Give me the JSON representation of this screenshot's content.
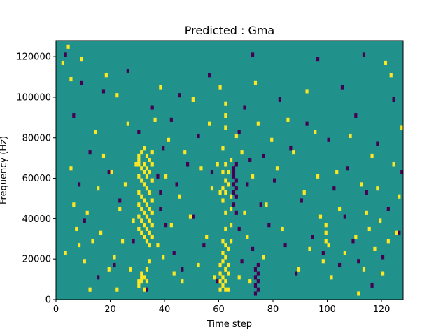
{
  "chart_data": {
    "type": "heatmap",
    "title": "Predicted : Gma",
    "xlabel": "Time step",
    "ylabel": "Frequency (Hz)",
    "xlim": [
      0,
      128
    ],
    "ylim": [
      0,
      128000
    ],
    "xticks": [
      0,
      20,
      40,
      60,
      80,
      100,
      120
    ],
    "yticks": [
      0,
      20000,
      40000,
      60000,
      80000,
      100000,
      120000
    ],
    "colors": {
      "background": "#21918c",
      "high": "#fde725",
      "low": "#440154"
    },
    "cell_width": 1,
    "cell_height": 2000,
    "high_cells": [
      [
        2,
        117000
      ],
      [
        3,
        23000
      ],
      [
        4,
        125000
      ],
      [
        5,
        109000
      ],
      [
        5,
        65000
      ],
      [
        6,
        47000
      ],
      [
        7,
        35000
      ],
      [
        8,
        27000
      ],
      [
        9,
        119000
      ],
      [
        10,
        19000
      ],
      [
        11,
        43000
      ],
      [
        12,
        5000
      ],
      [
        13,
        29000
      ],
      [
        14,
        83000
      ],
      [
        15,
        55000
      ],
      [
        16,
        33000
      ],
      [
        17,
        71000
      ],
      [
        18,
        111000
      ],
      [
        19,
        15000
      ],
      [
        20,
        63000
      ],
      [
        21,
        21000
      ],
      [
        22,
        101000
      ],
      [
        22,
        5000
      ],
      [
        23,
        45000
      ],
      [
        24,
        29000
      ],
      [
        25,
        57000
      ],
      [
        26,
        87000
      ],
      [
        27,
        15000
      ],
      [
        28,
        39000
      ],
      [
        29,
        67000
      ],
      [
        30,
        71000
      ],
      [
        30,
        69000
      ],
      [
        30,
        67000
      ],
      [
        30,
        61000
      ],
      [
        30,
        53000
      ],
      [
        30,
        47000
      ],
      [
        30,
        41000
      ],
      [
        30,
        35000
      ],
      [
        30,
        9000
      ],
      [
        30,
        7000
      ],
      [
        31,
        73000
      ],
      [
        31,
        65000
      ],
      [
        31,
        59000
      ],
      [
        31,
        51000
      ],
      [
        31,
        45000
      ],
      [
        31,
        39000
      ],
      [
        31,
        33000
      ],
      [
        31,
        13000
      ],
      [
        31,
        11000
      ],
      [
        31,
        9000
      ],
      [
        32,
        75000
      ],
      [
        32,
        67000
      ],
      [
        32,
        63000
      ],
      [
        32,
        57000
      ],
      [
        32,
        49000
      ],
      [
        32,
        43000
      ],
      [
        32,
        37000
      ],
      [
        32,
        31000
      ],
      [
        32,
        11000
      ],
      [
        32,
        5000
      ],
      [
        33,
        71000
      ],
      [
        33,
        65000
      ],
      [
        33,
        61000
      ],
      [
        33,
        55000
      ],
      [
        33,
        47000
      ],
      [
        33,
        41000
      ],
      [
        33,
        35000
      ],
      [
        33,
        29000
      ],
      [
        33,
        15000
      ],
      [
        33,
        9000
      ],
      [
        34,
        69000
      ],
      [
        34,
        63000
      ],
      [
        34,
        53000
      ],
      [
        34,
        45000
      ],
      [
        34,
        39000
      ],
      [
        34,
        33000
      ],
      [
        34,
        27000
      ],
      [
        34,
        19000
      ],
      [
        35,
        73000
      ],
      [
        35,
        67000
      ],
      [
        35,
        59000
      ],
      [
        35,
        49000
      ],
      [
        35,
        43000
      ],
      [
        35,
        37000
      ],
      [
        35,
        31000
      ],
      [
        36,
        89000
      ],
      [
        37,
        27000
      ],
      [
        38,
        105000
      ],
      [
        39,
        21000
      ],
      [
        40,
        61000
      ],
      [
        41,
        79000
      ],
      [
        42,
        37000
      ],
      [
        43,
        13000
      ],
      [
        45,
        51000
      ],
      [
        46,
        9000
      ],
      [
        47,
        73000
      ],
      [
        49,
        41000
      ],
      [
        50,
        99000
      ],
      [
        52,
        17000
      ],
      [
        53,
        65000
      ],
      [
        55,
        31000
      ],
      [
        56,
        87000
      ],
      [
        57,
        55000
      ],
      [
        58,
        11000
      ],
      [
        59,
        67000
      ],
      [
        60,
        105000
      ],
      [
        60,
        53000
      ],
      [
        60,
        17000
      ],
      [
        60,
        13000
      ],
      [
        60,
        9000
      ],
      [
        60,
        5000
      ],
      [
        61,
        75000
      ],
      [
        61,
        63000
      ],
      [
        61,
        55000
      ],
      [
        61,
        49000
      ],
      [
        61,
        29000
      ],
      [
        61,
        23000
      ],
      [
        61,
        19000
      ],
      [
        61,
        11000
      ],
      [
        61,
        7000
      ],
      [
        62,
        97000
      ],
      [
        62,
        91000
      ],
      [
        62,
        85000
      ],
      [
        62,
        67000
      ],
      [
        62,
        59000
      ],
      [
        62,
        53000
      ],
      [
        62,
        43000
      ],
      [
        62,
        35000
      ],
      [
        62,
        27000
      ],
      [
        62,
        21000
      ],
      [
        62,
        15000
      ],
      [
        62,
        9000
      ],
      [
        62,
        5000
      ],
      [
        63,
        63000
      ],
      [
        63,
        57000
      ],
      [
        63,
        25000
      ],
      [
        63,
        17000
      ],
      [
        63,
        13000
      ],
      [
        63,
        5000
      ],
      [
        64,
        69000
      ],
      [
        64,
        51000
      ],
      [
        64,
        45000
      ],
      [
        64,
        37000
      ],
      [
        64,
        29000
      ],
      [
        66,
        81000
      ],
      [
        67,
        11000
      ],
      [
        68,
        73000
      ],
      [
        69,
        43000
      ],
      [
        70,
        31000
      ],
      [
        71,
        9000
      ],
      [
        72,
        61000
      ],
      [
        73,
        107000
      ],
      [
        74,
        87000
      ],
      [
        76,
        21000
      ],
      [
        77,
        47000
      ],
      [
        79,
        79000
      ],
      [
        81,
        65000
      ],
      [
        83,
        35000
      ],
      [
        85,
        89000
      ],
      [
        87,
        73000
      ],
      [
        89,
        15000
      ],
      [
        91,
        53000
      ],
      [
        92,
        103000
      ],
      [
        93,
        25000
      ],
      [
        95,
        83000
      ],
      [
        96,
        61000
      ],
      [
        97,
        41000
      ],
      [
        98,
        19000
      ],
      [
        99,
        37000
      ],
      [
        99,
        33000
      ],
      [
        99,
        29000
      ],
      [
        100,
        27000
      ],
      [
        101,
        11000
      ],
      [
        103,
        63000
      ],
      [
        104,
        45000
      ],
      [
        106,
        23000
      ],
      [
        108,
        81000
      ],
      [
        110,
        31000
      ],
      [
        111,
        3000
      ],
      [
        112,
        57000
      ],
      [
        113,
        15000
      ],
      [
        114,
        43000
      ],
      [
        115,
        35000
      ],
      [
        116,
        71000
      ],
      [
        117,
        25000
      ],
      [
        118,
        55000
      ],
      [
        119,
        39000
      ],
      [
        120,
        13000
      ],
      [
        121,
        117000
      ],
      [
        122,
        29000
      ],
      [
        123,
        111000
      ],
      [
        124,
        67000
      ],
      [
        125,
        33000
      ],
      [
        126,
        51000
      ],
      [
        127,
        85000
      ]
    ],
    "low_cells": [
      [
        3,
        121000
      ],
      [
        6,
        91000
      ],
      [
        8,
        57000
      ],
      [
        9,
        107000
      ],
      [
        10,
        39000
      ],
      [
        12,
        73000
      ],
      [
        15,
        11000
      ],
      [
        17,
        103000
      ],
      [
        19,
        63000
      ],
      [
        21,
        17000
      ],
      [
        23,
        49000
      ],
      [
        26,
        113000
      ],
      [
        28,
        29000
      ],
      [
        30,
        83000
      ],
      [
        33,
        5000
      ],
      [
        35,
        95000
      ],
      [
        37,
        61000
      ],
      [
        38,
        53000
      ],
      [
        38,
        45000
      ],
      [
        39,
        75000
      ],
      [
        40,
        37000
      ],
      [
        42,
        89000
      ],
      [
        43,
        23000
      ],
      [
        44,
        57000
      ],
      [
        45,
        101000
      ],
      [
        46,
        15000
      ],
      [
        48,
        67000
      ],
      [
        50,
        41000
      ],
      [
        52,
        81000
      ],
      [
        54,
        27000
      ],
      [
        56,
        111000
      ],
      [
        57,
        63000
      ],
      [
        59,
        9000
      ],
      [
        65,
        65000
      ],
      [
        65,
        63000
      ],
      [
        65,
        61000
      ],
      [
        65,
        57000
      ],
      [
        65,
        53000
      ],
      [
        65,
        47000
      ],
      [
        66,
        67000
      ],
      [
        66,
        59000
      ],
      [
        66,
        55000
      ],
      [
        66,
        51000
      ],
      [
        66,
        43000
      ],
      [
        67,
        83000
      ],
      [
        67,
        35000
      ],
      [
        68,
        19000
      ],
      [
        69,
        95000
      ],
      [
        70,
        57000
      ],
      [
        71,
        69000
      ],
      [
        72,
        25000
      ],
      [
        72,
        121000
      ],
      [
        73,
        15000
      ],
      [
        73,
        11000
      ],
      [
        73,
        7000
      ],
      [
        73,
        3000
      ],
      [
        74,
        17000
      ],
      [
        74,
        13000
      ],
      [
        74,
        9000
      ],
      [
        74,
        5000
      ],
      [
        75,
        47000
      ],
      [
        76,
        71000
      ],
      [
        78,
        37000
      ],
      [
        80,
        59000
      ],
      [
        82,
        99000
      ],
      [
        84,
        27000
      ],
      [
        86,
        75000
      ],
      [
        88,
        13000
      ],
      [
        90,
        49000
      ],
      [
        92,
        87000
      ],
      [
        94,
        31000
      ],
      [
        96,
        119000
      ],
      [
        98,
        23000
      ],
      [
        100,
        79000
      ],
      [
        102,
        55000
      ],
      [
        104,
        17000
      ],
      [
        105,
        105000
      ],
      [
        106,
        41000
      ],
      [
        107,
        65000
      ],
      [
        109,
        29000
      ],
      [
        110,
        91000
      ],
      [
        111,
        19000
      ],
      [
        113,
        121000
      ],
      [
        114,
        53000
      ],
      [
        116,
        7000
      ],
      [
        118,
        77000
      ],
      [
        120,
        21000
      ],
      [
        122,
        45000
      ],
      [
        124,
        99000
      ],
      [
        126,
        33000
      ],
      [
        127,
        63000
      ]
    ]
  }
}
